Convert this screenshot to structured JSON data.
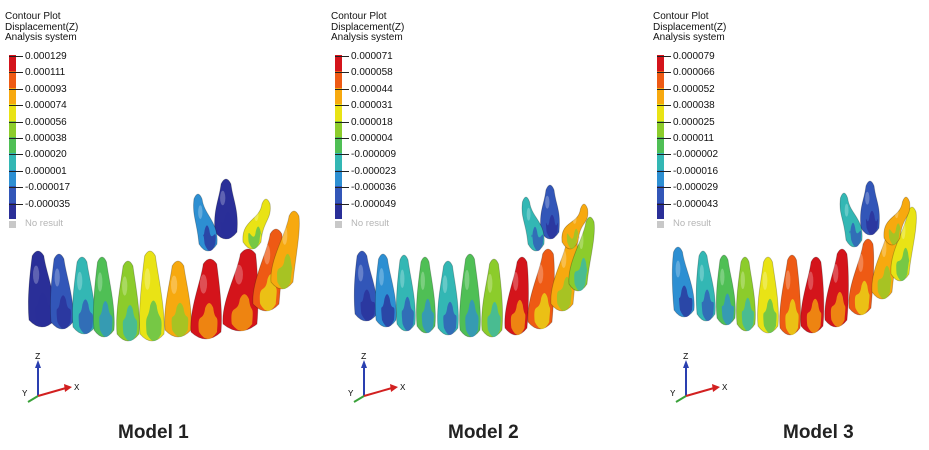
{
  "legend_colors": [
    "#d4141b",
    "#ee5a14",
    "#f7a90f",
    "#e9e315",
    "#8ccc2b",
    "#4fbf55",
    "#33b7b4",
    "#2d8fd2",
    "#3256b8",
    "#2a2f98"
  ],
  "models": [
    {
      "caption": "Model 1",
      "header": [
        "Contour Plot",
        "Displacement(Z)",
        "Analysis system"
      ],
      "legend_values": [
        "0.000129",
        "0.000111",
        "0.000093",
        "0.000074",
        "0.000056",
        "0.000038",
        "0.000020",
        "0.000001",
        "-0.000017",
        "-0.000035"
      ],
      "no_result": "No result",
      "axes": {
        "z": "Z",
        "y": "Y",
        "x": "X"
      }
    },
    {
      "caption": "Model 2",
      "header": [
        "Contour Plot",
        "Displacement(Z)",
        "Analysis system"
      ],
      "legend_values": [
        "0.000071",
        "0.000058",
        "0.000044",
        "0.000031",
        "0.000018",
        "0.000004",
        "-0.000009",
        "-0.000023",
        "-0.000036",
        "-0.000049"
      ],
      "no_result": "No result",
      "axes": {
        "z": "Z",
        "y": "Y",
        "x": "X"
      }
    },
    {
      "caption": "Model 3",
      "header": [
        "Contour Plot",
        "Displacement(Z)",
        "Analysis system"
      ],
      "legend_values": [
        "0.000079",
        "0.000066",
        "0.000052",
        "0.000038",
        "0.000025",
        "0.000011",
        "-0.000002",
        "-0.000016",
        "-0.000029",
        "-0.000043"
      ],
      "no_result": "No result",
      "axes": {
        "z": "Z",
        "y": "Y",
        "x": "X"
      }
    }
  ]
}
